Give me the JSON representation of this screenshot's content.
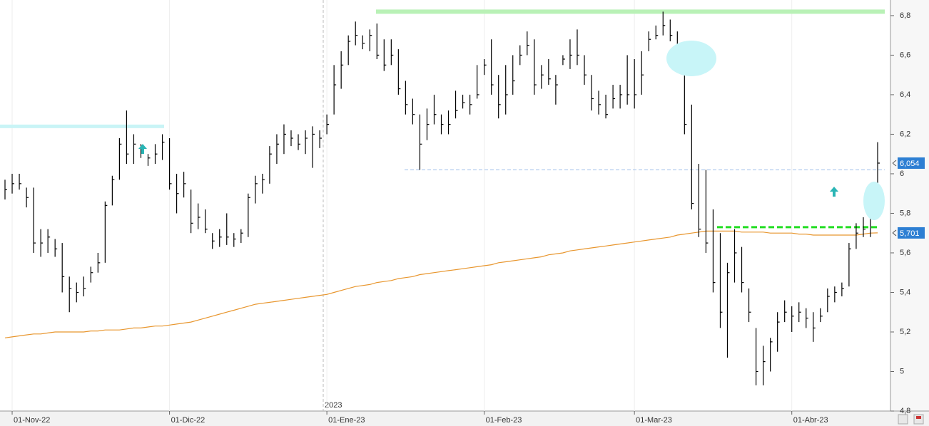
{
  "chart_data": {
    "type": "hlc",
    "color": "#000000",
    "categories": [
      null,
      "01-Nov-22",
      null,
      null,
      null,
      null,
      null,
      null,
      null,
      null,
      null,
      null,
      null,
      null,
      null,
      null,
      null,
      null,
      null,
      null,
      null,
      null,
      null,
      "01-Dic-22",
      null,
      null,
      null,
      null,
      null,
      null,
      null,
      null,
      null,
      null,
      null,
      null,
      null,
      null,
      null,
      null,
      null,
      null,
      null,
      null,
      null,
      "01-Ene-23",
      null,
      null,
      null,
      null,
      null,
      null,
      null,
      null,
      null,
      null,
      null,
      null,
      null,
      null,
      null,
      null,
      null,
      null,
      null,
      null,
      null,
      "01-Feb-23",
      null,
      null,
      null,
      null,
      null,
      null,
      null,
      null,
      null,
      null,
      null,
      null,
      null,
      null,
      null,
      null,
      null,
      null,
      null,
      null,
      "01-Mar-23",
      null,
      null,
      null,
      null,
      null,
      null,
      null,
      null,
      null,
      null,
      null,
      null,
      null,
      null,
      null,
      null,
      null,
      null,
      null,
      null,
      null,
      "01-Abr-23",
      null,
      null,
      null,
      null,
      null,
      null,
      null,
      null,
      null,
      null,
      null,
      null
    ],
    "high": [
      5.97,
      6.0,
      6.0,
      5.93,
      5.93,
      5.72,
      5.72,
      5.67,
      5.65,
      5.48,
      5.45,
      5.48,
      5.53,
      5.6,
      5.86,
      5.99,
      6.18,
      6.32,
      6.2,
      6.15,
      6.1,
      6.15,
      6.2,
      6.18,
      6.0,
      6.01,
      5.92,
      5.85,
      5.82,
      5.7,
      5.72,
      5.8,
      5.7,
      5.72,
      5.9,
      5.99,
      6.0,
      6.14,
      6.2,
      6.25,
      6.22,
      6.2,
      6.22,
      6.24,
      6.22,
      6.3,
      6.55,
      6.62,
      6.7,
      6.77,
      6.7,
      6.73,
      6.76,
      6.68,
      6.68,
      6.63,
      6.47,
      6.38,
      6.3,
      6.33,
      6.4,
      6.3,
      6.32,
      6.42,
      6.4,
      6.4,
      6.55,
      6.58,
      6.68,
      6.5,
      6.55,
      6.6,
      6.65,
      6.72,
      6.68,
      6.55,
      6.58,
      6.5,
      6.6,
      6.68,
      6.73,
      6.6,
      6.5,
      6.42,
      6.4,
      6.45,
      6.45,
      6.6,
      6.58,
      6.62,
      6.72,
      6.75,
      6.82,
      6.78,
      6.72,
      6.58,
      6.35,
      6.05,
      6.02,
      5.82,
      5.7,
      5.55,
      5.72,
      5.63,
      5.42,
      5.22,
      5.13,
      5.17,
      5.3,
      5.36,
      5.33,
      5.35,
      5.32,
      5.3,
      5.32,
      5.42,
      5.43,
      5.45,
      5.65,
      5.75,
      5.78,
      5.83,
      6.16
    ],
    "low": [
      5.87,
      5.9,
      5.92,
      5.83,
      5.6,
      5.58,
      5.6,
      5.58,
      5.4,
      5.3,
      5.35,
      5.38,
      5.45,
      5.5,
      5.55,
      5.84,
      5.97,
      6.05,
      6.05,
      6.08,
      6.04,
      6.05,
      6.07,
      5.92,
      5.8,
      5.88,
      5.7,
      5.72,
      5.7,
      5.62,
      5.63,
      5.64,
      5.63,
      5.65,
      5.68,
      5.85,
      5.9,
      5.95,
      6.05,
      6.1,
      6.14,
      6.12,
      6.1,
      6.03,
      6.13,
      6.2,
      6.3,
      6.43,
      6.55,
      6.65,
      6.63,
      6.62,
      6.58,
      6.52,
      6.55,
      6.4,
      6.3,
      6.25,
      6.02,
      6.17,
      6.25,
      6.2,
      6.2,
      6.28,
      6.33,
      6.3,
      6.38,
      6.5,
      6.4,
      6.28,
      6.3,
      6.4,
      6.55,
      6.6,
      6.4,
      6.43,
      6.45,
      6.35,
      6.55,
      6.53,
      6.55,
      6.45,
      6.32,
      6.3,
      6.28,
      6.33,
      6.33,
      6.35,
      6.33,
      6.4,
      6.62,
      6.68,
      6.7,
      6.67,
      6.6,
      6.2,
      5.82,
      5.68,
      5.6,
      5.4,
      5.22,
      5.07,
      5.45,
      5.4,
      5.25,
      4.93,
      4.93,
      5.0,
      5.1,
      5.25,
      5.2,
      5.25,
      5.22,
      5.15,
      5.25,
      5.3,
      5.35,
      5.38,
      5.43,
      5.62,
      5.68,
      5.68,
      5.9
    ],
    "close": [
      5.92,
      5.95,
      5.95,
      5.88,
      5.65,
      5.65,
      5.68,
      5.62,
      5.48,
      5.42,
      5.4,
      5.42,
      5.5,
      5.55,
      5.84,
      5.97,
      6.15,
      6.1,
      6.15,
      6.12,
      6.08,
      6.1,
      6.16,
      5.95,
      5.9,
      5.95,
      5.75,
      5.78,
      5.72,
      5.66,
      5.68,
      5.68,
      5.67,
      5.7,
      5.88,
      5.95,
      5.97,
      6.1,
      6.15,
      6.2,
      6.18,
      6.15,
      6.18,
      6.2,
      6.18,
      6.25,
      6.45,
      6.55,
      6.67,
      6.7,
      6.66,
      6.7,
      6.6,
      6.55,
      6.6,
      6.43,
      6.35,
      6.3,
      6.15,
      6.25,
      6.3,
      6.25,
      6.25,
      6.32,
      6.36,
      6.35,
      6.4,
      6.55,
      6.45,
      6.35,
      6.4,
      6.47,
      6.6,
      6.65,
      6.45,
      6.5,
      6.48,
      6.45,
      6.58,
      6.6,
      6.6,
      6.5,
      6.38,
      6.35,
      6.3,
      6.38,
      6.4,
      6.4,
      6.4,
      6.5,
      6.68,
      6.7,
      6.75,
      6.7,
      6.63,
      6.25,
      5.85,
      5.72,
      5.65,
      5.45,
      5.3,
      5.5,
      5.6,
      5.45,
      5.3,
      5.0,
      5.05,
      5.15,
      5.25,
      5.3,
      5.28,
      5.3,
      5.27,
      5.22,
      5.28,
      5.38,
      5.4,
      5.42,
      5.62,
      5.7,
      5.72,
      5.78,
      6.054
    ],
    "moving_average": {
      "color": "#e8962e",
      "values": [
        5.17,
        5.175,
        5.18,
        5.185,
        5.19,
        5.19,
        5.195,
        5.2,
        5.2,
        5.2,
        5.2,
        5.2,
        5.205,
        5.205,
        5.21,
        5.21,
        5.21,
        5.215,
        5.22,
        5.22,
        5.225,
        5.23,
        5.23,
        5.235,
        5.24,
        5.245,
        5.25,
        5.26,
        5.27,
        5.28,
        5.29,
        5.3,
        5.31,
        5.32,
        5.33,
        5.34,
        5.345,
        5.35,
        5.355,
        5.36,
        5.365,
        5.37,
        5.375,
        5.38,
        5.385,
        5.39,
        5.4,
        5.41,
        5.42,
        5.43,
        5.435,
        5.44,
        5.45,
        5.455,
        5.46,
        5.47,
        5.475,
        5.48,
        5.49,
        5.495,
        5.5,
        5.505,
        5.51,
        5.515,
        5.52,
        5.525,
        5.53,
        5.535,
        5.54,
        5.55,
        5.555,
        5.56,
        5.565,
        5.57,
        5.575,
        5.58,
        5.59,
        5.595,
        5.6,
        5.61,
        5.615,
        5.62,
        5.625,
        5.63,
        5.635,
        5.64,
        5.645,
        5.65,
        5.655,
        5.66,
        5.665,
        5.67,
        5.675,
        5.68,
        5.69,
        5.695,
        5.7,
        5.705,
        5.71,
        5.71,
        5.71,
        5.71,
        5.71,
        5.705,
        5.705,
        5.705,
        5.705,
        5.7,
        5.7,
        5.7,
        5.7,
        5.695,
        5.695,
        5.69,
        5.69,
        5.69,
        5.69,
        5.69,
        5.69,
        5.69,
        5.695,
        5.7,
        5.701
      ]
    },
    "ylim": [
      4.8,
      6.879
    ],
    "yticks": [
      {
        "value": 4.8,
        "label": "4,8"
      },
      5,
      {
        "value": 5.2,
        "label": "5,2"
      },
      {
        "value": 5.4,
        "label": "5,4"
      },
      {
        "value": 5.6,
        "label": "5,6"
      },
      {
        "value": 5.8,
        "label": "5,8"
      },
      6,
      {
        "value": 6.2,
        "label": "6,2"
      },
      {
        "value": 6.4,
        "label": "6,4"
      },
      {
        "value": 6.6,
        "label": "6,6"
      },
      {
        "value": 6.8,
        "label": "6,8"
      }
    ],
    "year_label": "2023",
    "price_tags": [
      {
        "value": 6.054,
        "label": "6,054"
      },
      {
        "value": 5.701,
        "label": "5,701"
      }
    ],
    "reference_lines": [
      {
        "value": 6.82,
        "color": "#b9f1b6"
      },
      {
        "value": 6.24,
        "color": "#c9f4f6"
      },
      {
        "value": 6.02,
        "color": "#9dbde9",
        "dashed": true
      },
      {
        "value": 5.73,
        "color": "#22dd22",
        "dashed": true
      }
    ]
  }
}
